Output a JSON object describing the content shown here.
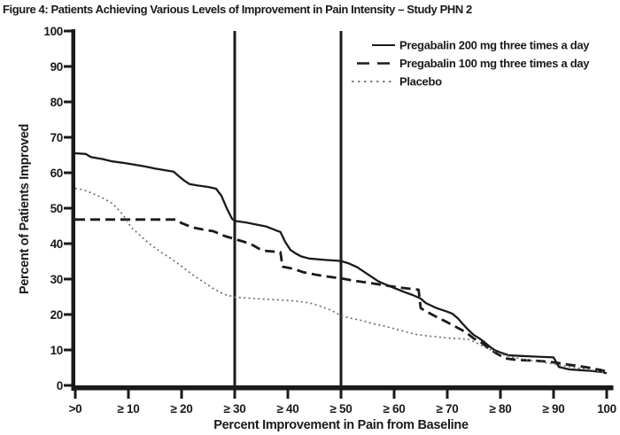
{
  "figure_title": "Figure 4: Patients Achieving Various Levels of Improvement in Pain Intensity – Study PHN 2",
  "chart_data": {
    "type": "line",
    "title": "Figure 4: Patients Achieving Various Levels of Improvement in Pain Intensity – Study PHN 2",
    "xlabel": "Percent Improvement in Pain from Baseline",
    "ylabel": "Percent of Patients Improved",
    "xlim": [
      0,
      100
    ],
    "ylim": [
      0,
      100
    ],
    "grid": false,
    "legend_position": "top-right",
    "x_ticks": [
      {
        "value": 0,
        "label": ">0"
      },
      {
        "value": 10,
        "label": "≥ 10"
      },
      {
        "value": 20,
        "label": "≥ 20"
      },
      {
        "value": 30,
        "label": "≥ 30"
      },
      {
        "value": 40,
        "label": "≥ 40"
      },
      {
        "value": 50,
        "label": "≥ 50"
      },
      {
        "value": 60,
        "label": "≥ 60"
      },
      {
        "value": 70,
        "label": "≥ 70"
      },
      {
        "value": 80,
        "label": "≥ 80"
      },
      {
        "value": 90,
        "label": "≥ 90"
      },
      {
        "value": 100,
        "label": "100"
      }
    ],
    "y_ticks": [
      0,
      10,
      20,
      30,
      40,
      50,
      60,
      70,
      80,
      90,
      100
    ],
    "reference_lines_x": [
      30,
      50
    ],
    "colors": {
      "ink": "#1a1a1a",
      "placebo": "#6f6f6f",
      "background": "#ffffff"
    },
    "series": [
      {
        "id": "pregabalin-200",
        "name": "Pregabalin 200 mg three times a day",
        "style": "solid",
        "color": "#1a1a1a",
        "points": [
          [
            0,
            65.5
          ],
          [
            2,
            65.3
          ],
          [
            2.5,
            64.8
          ],
          [
            3,
            64.4
          ],
          [
            5,
            63.9
          ],
          [
            7,
            63.2
          ],
          [
            9,
            62.8
          ],
          [
            11,
            62.3
          ],
          [
            13,
            61.8
          ],
          [
            15,
            61.2
          ],
          [
            17,
            60.7
          ],
          [
            18.5,
            60.3
          ],
          [
            19.5,
            59
          ],
          [
            20.5,
            57.8
          ],
          [
            21.5,
            56.8
          ],
          [
            23,
            56.4
          ],
          [
            25,
            56
          ],
          [
            26.5,
            55.5
          ],
          [
            27.5,
            53.5
          ],
          [
            28.5,
            50
          ],
          [
            29.5,
            47
          ],
          [
            30,
            46.4
          ],
          [
            32,
            46
          ],
          [
            34,
            45.4
          ],
          [
            36,
            44.8
          ],
          [
            38,
            43.6
          ],
          [
            38.6,
            43.3
          ],
          [
            39.5,
            40.5
          ],
          [
            40.5,
            38.2
          ],
          [
            41.5,
            37.2
          ],
          [
            42.5,
            36.4
          ],
          [
            44,
            35.8
          ],
          [
            47,
            35.4
          ],
          [
            50,
            35.1
          ],
          [
            51.5,
            34.4
          ],
          [
            53,
            33.4
          ],
          [
            54,
            32.4
          ],
          [
            55,
            31.4
          ],
          [
            56,
            30.4
          ],
          [
            57,
            29.4
          ],
          [
            58,
            28.7
          ],
          [
            60,
            27.5
          ],
          [
            62,
            26.3
          ],
          [
            63.5,
            25.5
          ],
          [
            65,
            24.5
          ],
          [
            66,
            23.2
          ],
          [
            67,
            22.5
          ],
          [
            68,
            21.8
          ],
          [
            70,
            20.8
          ],
          [
            71,
            20.2
          ],
          [
            72,
            18.9
          ],
          [
            73,
            17.2
          ],
          [
            74,
            15.6
          ],
          [
            75,
            14.2
          ],
          [
            76,
            13.3
          ],
          [
            77,
            12.2
          ],
          [
            78,
            10.9
          ],
          [
            79,
            9.9
          ],
          [
            80,
            9.3
          ],
          [
            81.5,
            8.5
          ],
          [
            84,
            8.3
          ],
          [
            87,
            8.1
          ],
          [
            90,
            7.9
          ],
          [
            91,
            5.2
          ],
          [
            93,
            4.5
          ],
          [
            95,
            4.3
          ],
          [
            97,
            4.1
          ],
          [
            99,
            3.8
          ],
          [
            100,
            3.4
          ]
        ]
      },
      {
        "id": "pregabalin-100",
        "name": "Pregabalin 100 mg three times a day",
        "style": "dashed",
        "color": "#1a1a1a",
        "points": [
          [
            0,
            46.8
          ],
          [
            19,
            46.8
          ],
          [
            20,
            45.8
          ],
          [
            21,
            45.2
          ],
          [
            22,
            44.6
          ],
          [
            24,
            44
          ],
          [
            26,
            43.5
          ],
          [
            28,
            42.2
          ],
          [
            30,
            41.3
          ],
          [
            32,
            40.4
          ],
          [
            33.5,
            39.5
          ],
          [
            34.5,
            38.6
          ],
          [
            35.5,
            38
          ],
          [
            38.6,
            37.6
          ],
          [
            39,
            33.5
          ],
          [
            41,
            32.9
          ],
          [
            43,
            31.9
          ],
          [
            45,
            31.3
          ],
          [
            47,
            30.8
          ],
          [
            50,
            30.2
          ],
          [
            52.5,
            29.5
          ],
          [
            55,
            29
          ],
          [
            58,
            28.3
          ],
          [
            61,
            27.6
          ],
          [
            64,
            27.1
          ],
          [
            64.6,
            27
          ],
          [
            65,
            21.8
          ],
          [
            66.5,
            20.5
          ],
          [
            68,
            19.3
          ],
          [
            70,
            17.8
          ],
          [
            72,
            16.2
          ],
          [
            73.5,
            15
          ],
          [
            75,
            13.2
          ],
          [
            76.5,
            12
          ],
          [
            78,
            10.2
          ],
          [
            79.5,
            8.8
          ],
          [
            81,
            7.6
          ],
          [
            83,
            7.2
          ],
          [
            86,
            7
          ],
          [
            89,
            6.7
          ],
          [
            91,
            6.3
          ],
          [
            93,
            5.8
          ],
          [
            95,
            5.4
          ],
          [
            97,
            4.9
          ],
          [
            99,
            4.3
          ],
          [
            100,
            3.9
          ]
        ]
      },
      {
        "id": "placebo",
        "name": "Placebo",
        "style": "dotted",
        "color": "#6f6f6f",
        "points": [
          [
            0,
            55.6
          ],
          [
            1.5,
            55.2
          ],
          [
            3,
            54.3
          ],
          [
            5,
            53
          ],
          [
            7,
            51.3
          ],
          [
            8.5,
            49
          ],
          [
            9.5,
            47
          ],
          [
            10.5,
            44.6
          ],
          [
            12,
            42.6
          ],
          [
            14,
            39.9
          ],
          [
            16,
            37.7
          ],
          [
            18,
            35.8
          ],
          [
            20,
            33.6
          ],
          [
            22,
            31.3
          ],
          [
            24,
            29.3
          ],
          [
            26,
            27.3
          ],
          [
            28,
            25.7
          ],
          [
            30,
            24.9
          ],
          [
            33,
            24.6
          ],
          [
            36,
            24.3
          ],
          [
            40,
            24
          ],
          [
            42,
            23.7
          ],
          [
            44,
            23.3
          ],
          [
            46,
            22.4
          ],
          [
            48,
            21.3
          ],
          [
            50,
            19.7
          ],
          [
            52,
            18.9
          ],
          [
            54,
            18.3
          ],
          [
            56,
            17.4
          ],
          [
            58,
            16.8
          ],
          [
            60,
            16
          ],
          [
            62,
            15.2
          ],
          [
            64,
            14.4
          ],
          [
            66,
            14
          ],
          [
            68,
            13.7
          ],
          [
            70,
            13.4
          ],
          [
            72,
            13.2
          ],
          [
            74,
            13
          ],
          [
            75.5,
            12
          ],
          [
            77,
            10.8
          ],
          [
            78.5,
            9.8
          ],
          [
            80,
            8.9
          ],
          [
            82,
            8
          ],
          [
            85,
            7.2
          ],
          [
            88,
            6.5
          ],
          [
            90,
            6.1
          ],
          [
            92,
            5.5
          ],
          [
            95,
            4.8
          ],
          [
            98,
            4.1
          ],
          [
            100,
            3.5
          ]
        ]
      }
    ]
  }
}
